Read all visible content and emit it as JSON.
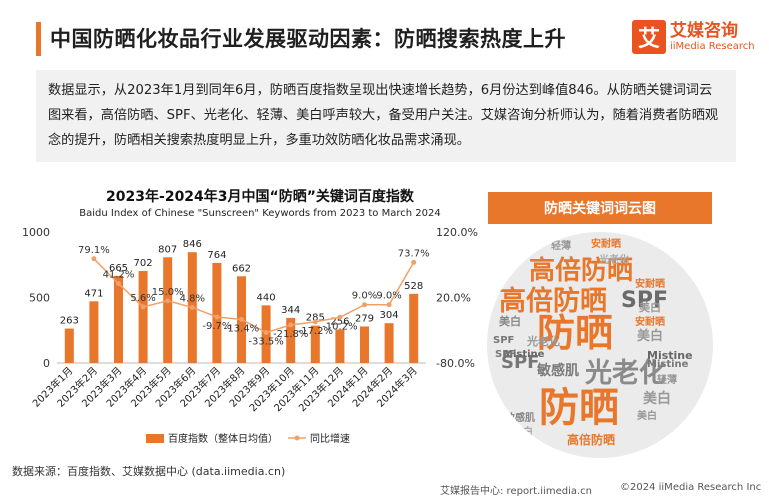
{
  "header": {
    "title": "中国防晒化妆品行业发展驱动因素：防晒搜索热度上升",
    "logo_glyph": "艾",
    "logo_cn": "艾媒咨询",
    "logo_en": "iiMedia Research"
  },
  "description": "数据显示，从2023年1月到同年6月，防晒百度指数呈现出快速增长趋势，6月份达到峰值846。从防晒关键词词云图来看，高倍防晒、SPF、光老化、轻薄、美白呼声较大，备受用户关注。艾媒咨询分析师认为，随着消费者防晒观念的提升，防晒相关搜索热度明显上升，多重功效防晒化妆品需求涌现。",
  "chart_data": {
    "type": "bar",
    "title": "2023年-2024年3月中国“防晒”关键词百度指数",
    "subtitle": "Baidu Index of Chinese \"Sunscreen\" Keywords from 2023 to March 2024",
    "categories": [
      "2023年1月",
      "2023年2月",
      "2023年3月",
      "2023年4月",
      "2023年5月",
      "2023年6月",
      "2023年7月",
      "2023年8月",
      "2023年9月",
      "2023年10月",
      "2023年11月",
      "2023年12月",
      "2024年1月",
      "2024年2月",
      "2024年3月"
    ],
    "series": [
      {
        "name": "百度指数（整体日均值）",
        "type": "bar",
        "axis": "left",
        "color": "#e8762b",
        "values": [
          263,
          471,
          665,
          702,
          807,
          846,
          764,
          662,
          440,
          344,
          285,
          256,
          279,
          304,
          528
        ],
        "labels": [
          "263",
          "471",
          "665",
          "702",
          "807",
          "846",
          "764",
          "662",
          "440",
          "344",
          "285",
          "256",
          "279",
          "304",
          "528"
        ]
      },
      {
        "name": "同比增速",
        "type": "line",
        "axis": "right",
        "color": "#f2a06a",
        "values": [
          null,
          79.1,
          41.2,
          5.6,
          15.0,
          4.8,
          -9.7,
          -13.4,
          -33.5,
          -21.8,
          -17.2,
          -10.2,
          9.0,
          9.0,
          73.7
        ],
        "labels": [
          "",
          "79.1%",
          "41.2%",
          "5.6%",
          "15.0%",
          "4.8%",
          "-9.7%",
          "-13.4%",
          "-33.5%",
          "-21.8%",
          "-17.2%",
          "-10.2%",
          "9.0%",
          "9.0%",
          "73.7%"
        ]
      }
    ],
    "y_left": {
      "ticks": [
        "0",
        "500",
        "1000"
      ],
      "range": [
        0,
        1000
      ]
    },
    "y_right": {
      "ticks": [
        "-80.0%",
        "20.0%",
        "120.0%"
      ],
      "range": [
        -80,
        120
      ]
    },
    "legend_position": "bottom",
    "grid": false
  },
  "wordcloud": {
    "title": "防晒关键词词云图",
    "words": [
      "防晒",
      "防晒",
      "高倍防晒",
      "高倍防晒",
      "SPF",
      "SPF",
      "光老化",
      "敏感肌",
      "美白",
      "美白",
      "Mistine",
      "Mistine",
      "安耐晒",
      "安耐晒",
      "轻薄",
      "美白",
      "SPF",
      "高倍防晒",
      "光老化",
      "美白",
      "敏感肌",
      "SPF",
      "Mistine",
      "安耐晒",
      "美白",
      "轻薄",
      "光老化",
      "美白"
    ]
  },
  "footer": {
    "source": "数据来源：百度指数、艾媒数据中心 (data.iimedia.cn)",
    "report": "艾媒报告中心: report.iimedia.cn",
    "copyright": "©2024  iiMedia Research  Inc"
  }
}
